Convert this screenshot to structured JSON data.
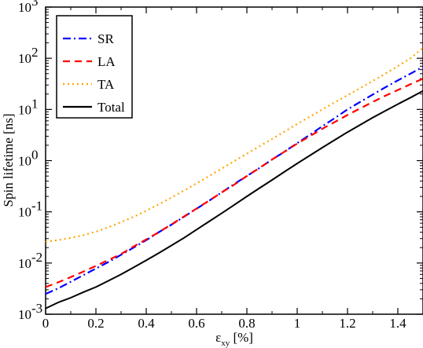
{
  "chart_data": {
    "type": "line",
    "title": "",
    "xlabel": "ε",
    "xlabel_sub": "xy",
    "xlabel_unit": " [%]",
    "ylabel": "Spin lifetime [ns]",
    "xlim": [
      0,
      1.5
    ],
    "ylim": [
      0.001,
      1000
    ],
    "yscale": "log",
    "grid": false,
    "legend_position": "top-left",
    "x_ticks": [
      {
        "value": 0,
        "label": "0"
      },
      {
        "value": 0.2,
        "label": "0.2"
      },
      {
        "value": 0.4,
        "label": "0.4"
      },
      {
        "value": 0.6,
        "label": "0.6"
      },
      {
        "value": 0.8,
        "label": "0.8"
      },
      {
        "value": 1,
        "label": "1"
      },
      {
        "value": 1.2,
        "label": "1.2"
      },
      {
        "value": 1.4,
        "label": "1.4"
      }
    ],
    "y_ticks": [
      {
        "value": 0.001,
        "base": "10",
        "exp": "-3"
      },
      {
        "value": 0.01,
        "base": "10",
        "exp": "-2"
      },
      {
        "value": 0.1,
        "base": "10",
        "exp": "-1"
      },
      {
        "value": 1,
        "base": "10",
        "exp": "0"
      },
      {
        "value": 10,
        "base": "10",
        "exp": "1"
      },
      {
        "value": 100,
        "base": "10",
        "exp": "2"
      },
      {
        "value": 1000,
        "base": "10",
        "exp": "3"
      }
    ],
    "x": [
      0,
      0.05,
      0.1,
      0.15,
      0.2,
      0.25,
      0.3,
      0.35,
      0.4,
      0.45,
      0.5,
      0.55,
      0.6,
      0.65,
      0.7,
      0.75,
      0.8,
      0.85,
      0.9,
      0.95,
      1.0,
      1.05,
      1.1,
      1.15,
      1.2,
      1.25,
      1.3,
      1.35,
      1.4,
      1.45,
      1.5
    ],
    "series": [
      {
        "name": "SR",
        "color": "#0000ff",
        "dash": "dashdot",
        "values": [
          0.0025,
          0.0032,
          0.0043,
          0.0058,
          0.0078,
          0.0105,
          0.0145,
          0.02,
          0.028,
          0.04,
          0.056,
          0.08,
          0.115,
          0.165,
          0.24,
          0.35,
          0.5,
          0.72,
          1.05,
          1.5,
          2.2,
          3.2,
          4.7,
          6.8,
          10,
          14,
          19.5,
          27,
          37,
          50,
          68
        ]
      },
      {
        "name": "LA",
        "color": "#ff0000",
        "dash": "dash",
        "values": [
          0.0034,
          0.0042,
          0.0053,
          0.0068,
          0.0088,
          0.0115,
          0.015,
          0.021,
          0.029,
          0.04,
          0.057,
          0.081,
          0.116,
          0.166,
          0.24,
          0.34,
          0.5,
          0.72,
          1.05,
          1.5,
          2.15,
          3.0,
          4.2,
          5.7,
          7.8,
          10.5,
          14,
          18.5,
          24,
          31,
          40
        ]
      },
      {
        "name": "TA",
        "color": "#ffa500",
        "dash": "dot",
        "values": [
          0.026,
          0.028,
          0.031,
          0.035,
          0.041,
          0.05,
          0.063,
          0.08,
          0.105,
          0.14,
          0.19,
          0.26,
          0.36,
          0.5,
          0.7,
          0.98,
          1.37,
          1.9,
          2.65,
          3.7,
          5.2,
          7.2,
          10,
          13.8,
          19,
          26,
          36,
          50,
          70,
          100,
          160
        ]
      },
      {
        "name": "Total",
        "color": "#000000",
        "dash": "solid",
        "values": [
          0.0013,
          0.0017,
          0.0021,
          0.0027,
          0.0034,
          0.0045,
          0.006,
          0.0082,
          0.0113,
          0.0157,
          0.022,
          0.031,
          0.045,
          0.065,
          0.094,
          0.137,
          0.2,
          0.29,
          0.42,
          0.61,
          0.88,
          1.26,
          1.8,
          2.55,
          3.6,
          5.0,
          6.9,
          9.4,
          12.7,
          17,
          23
        ]
      }
    ]
  }
}
